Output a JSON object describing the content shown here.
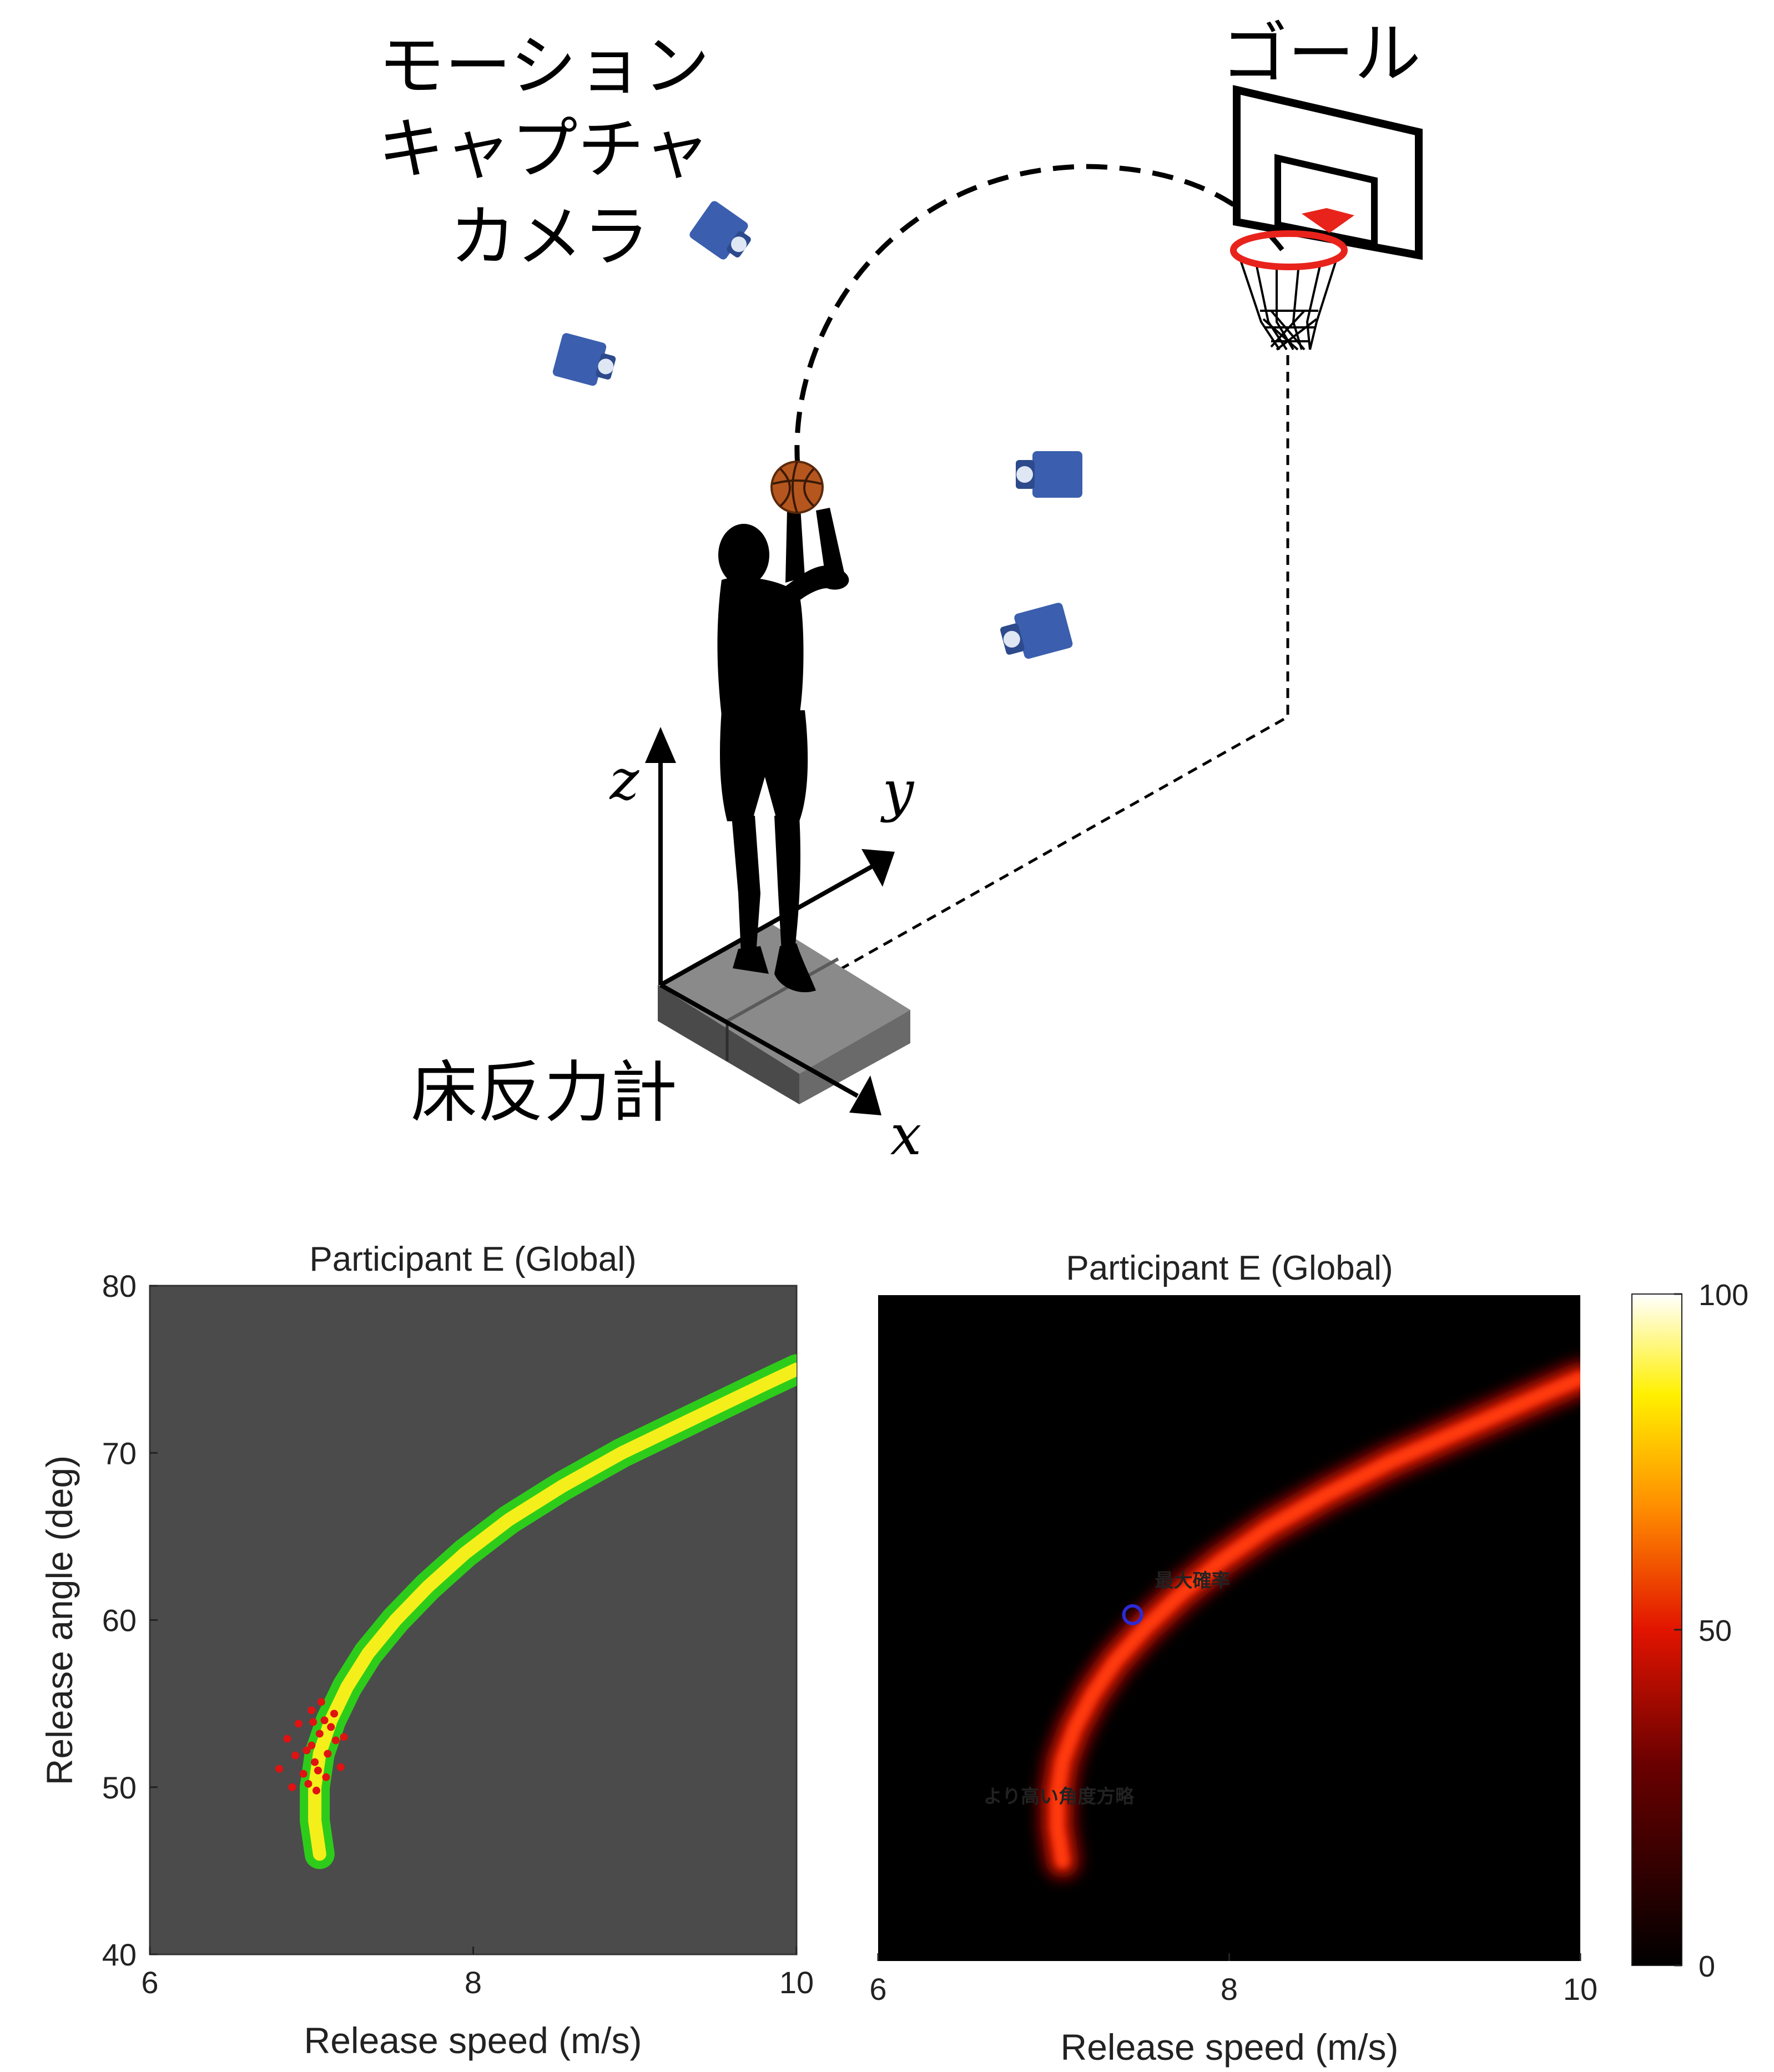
{
  "diagram": {
    "labels": {
      "camera": [
        "モーション",
        "キャプチャ",
        "カメラ"
      ],
      "goal": "ゴール",
      "force_plate": "床反力計",
      "axis_x": "x",
      "axis_y": "y",
      "axis_z": "z"
    },
    "colors": {
      "camera": "#3b5fae",
      "ball": "#b5561e",
      "rim": "#e8231c",
      "plate": "#8a8a8a",
      "silhouette": "#000000"
    }
  },
  "chart_data": [
    {
      "type": "heatmap",
      "title": "Participant E (Global)",
      "xlabel": "Release speed (m/s)",
      "ylabel": "Release angle (deg)",
      "xlim": [
        6,
        10
      ],
      "ylim": [
        40,
        80
      ],
      "xticks": [
        "6",
        "8",
        "10"
      ],
      "yticks": [
        "40",
        "50",
        "60",
        "70",
        "80"
      ],
      "background": "#4b4b4b",
      "band_colors": [
        "#2ecc1a",
        "#f4ef1a"
      ],
      "success_band": [
        {
          "speed": 7.05,
          "angle": 46
        },
        {
          "speed": 7.02,
          "angle": 48
        },
        {
          "speed": 7.02,
          "angle": 50
        },
        {
          "speed": 7.05,
          "angle": 52
        },
        {
          "speed": 7.12,
          "angle": 54
        },
        {
          "speed": 7.22,
          "angle": 56
        },
        {
          "speed": 7.35,
          "angle": 58
        },
        {
          "speed": 7.52,
          "angle": 60
        },
        {
          "speed": 7.72,
          "angle": 62
        },
        {
          "speed": 7.95,
          "angle": 64
        },
        {
          "speed": 8.22,
          "angle": 66
        },
        {
          "speed": 8.55,
          "angle": 68
        },
        {
          "speed": 8.92,
          "angle": 70
        },
        {
          "speed": 9.35,
          "angle": 72
        },
        {
          "speed": 9.78,
          "angle": 74
        },
        {
          "speed": 10.0,
          "angle": 75
        }
      ],
      "trials": [
        {
          "speed": 7.0,
          "angle": 52.5
        },
        {
          "speed": 7.05,
          "angle": 53.2
        },
        {
          "speed": 7.08,
          "angle": 54.0
        },
        {
          "speed": 7.02,
          "angle": 51.5
        },
        {
          "speed": 7.1,
          "angle": 52.0
        },
        {
          "speed": 7.12,
          "angle": 53.6
        },
        {
          "speed": 6.95,
          "angle": 50.8
        },
        {
          "speed": 6.9,
          "angle": 51.9
        },
        {
          "speed": 7.0,
          "angle": 54.6
        },
        {
          "speed": 7.15,
          "angle": 52.8
        },
        {
          "speed": 6.98,
          "angle": 50.2
        },
        {
          "speed": 7.06,
          "angle": 55.1
        },
        {
          "speed": 6.85,
          "angle": 52.9
        },
        {
          "speed": 7.18,
          "angle": 51.2
        },
        {
          "speed": 7.03,
          "angle": 49.8
        },
        {
          "speed": 6.92,
          "angle": 53.8
        },
        {
          "speed": 7.09,
          "angle": 50.6
        },
        {
          "speed": 6.8,
          "angle": 51.1
        },
        {
          "speed": 7.14,
          "angle": 54.4
        },
        {
          "speed": 6.97,
          "angle": 52.2
        },
        {
          "speed": 7.04,
          "angle": 51.0
        },
        {
          "speed": 6.88,
          "angle": 50.0
        },
        {
          "speed": 7.2,
          "angle": 53.0
        },
        {
          "speed": 7.01,
          "angle": 53.9
        }
      ]
    },
    {
      "type": "heatmap",
      "title": "Participant E (Global)",
      "xlabel": "Release speed (m/s)",
      "xlim": [
        6,
        10
      ],
      "ylim": [
        40,
        80
      ],
      "xticks": [
        "6",
        "8",
        "10"
      ],
      "colorbar": {
        "min": 0,
        "max": 100,
        "ticks": [
          "0",
          "50",
          "100"
        ]
      },
      "max_probability_point": {
        "speed": 7.45,
        "angle": 60.8
      },
      "annotations": {
        "max_label": "最大確率",
        "strategy_label": "より高い角度方略"
      },
      "annotation_color": "#ffef1a",
      "marker_color": "#2b2bd6"
    }
  ]
}
